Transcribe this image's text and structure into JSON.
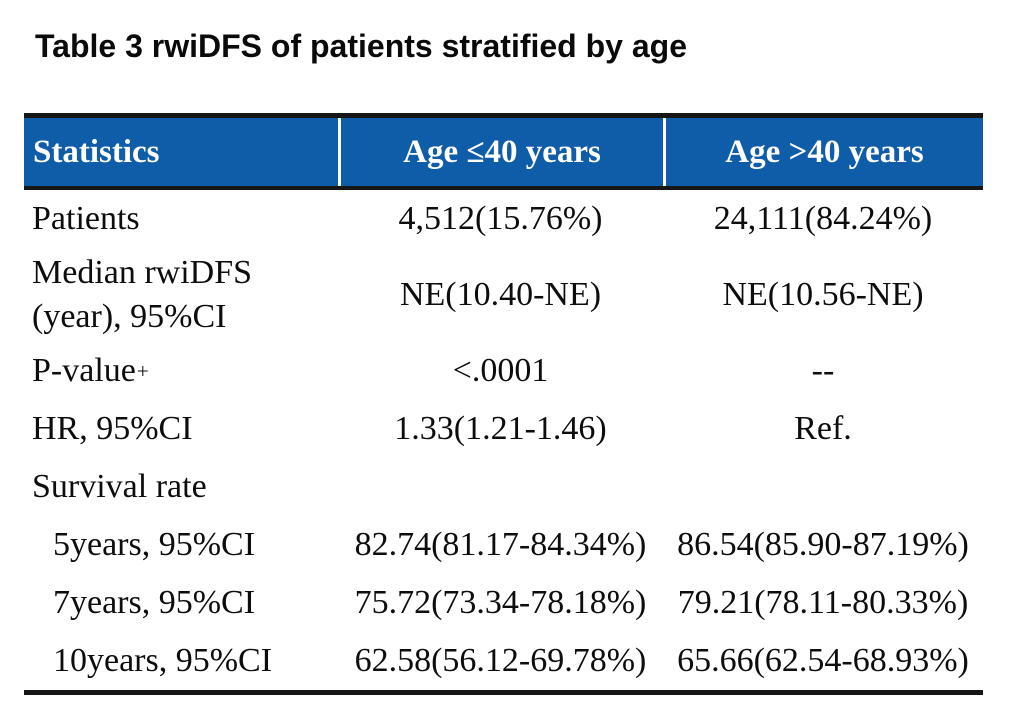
{
  "title": "Table 3 rwiDFS of patients stratified by age",
  "colors": {
    "header_background": "#0f5da9",
    "header_text": "#ffffff",
    "rule": "#161616",
    "body_text": "#0d0d0d",
    "page_background": "#ffffff"
  },
  "table": {
    "columns": [
      "Statistics",
      "Age ≤40 years",
      "Age >40 years"
    ],
    "rows": [
      {
        "label": "Patients",
        "col2": "4,512(15.76%)",
        "col3": "24,111(84.24%)"
      },
      {
        "label": "Median rwiDFS (year), 95%CI",
        "col2": "NE(10.40-NE)",
        "col3": "NE(10.56-NE)"
      },
      {
        "label": "P-value",
        "sup": "+",
        "col2": "<.0001",
        "col3": "--"
      },
      {
        "label": "HR, 95%CI",
        "col2": "1.33(1.21-1.46)",
        "col3": "Ref."
      },
      {
        "label": "Survival rate",
        "col2": "",
        "col3": ""
      },
      {
        "label": "5years, 95%CI",
        "col2": "82.74(81.17-84.34%)",
        "col3": "86.54(85.90-87.19%)"
      },
      {
        "label": "7years, 95%CI",
        "col2": "75.72(73.34-78.18%)",
        "col3": "79.21(78.11-80.33%)"
      },
      {
        "label": "10years, 95%CI",
        "col2": "62.58(56.12-69.78%)",
        "col3": "65.66(62.54-68.93%)"
      }
    ]
  }
}
